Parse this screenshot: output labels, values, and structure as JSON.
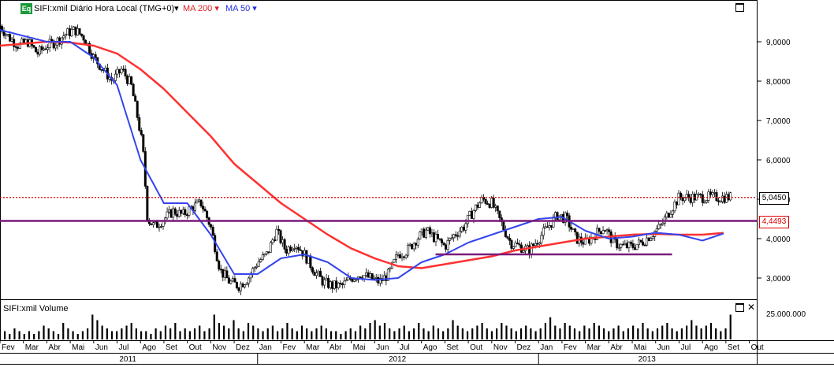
{
  "header": {
    "badge": "Eq",
    "title": "SIFI:xmil Diário Hora Local (TMG+0)▾",
    "ma200": "MA 200 ▾",
    "ma50": "MA 50 ▾"
  },
  "volume_panel": {
    "title": "SIFI:xmil Volume"
  },
  "price_tags": {
    "last": "5,0450",
    "level": "4,4493"
  },
  "colors": {
    "ma200": "#ff3030",
    "ma50": "#3344ee",
    "horizontal_line": "#7a1a7a",
    "last_price_line": "#dd0000",
    "candles": "#000000"
  },
  "chart_data": {
    "type": "line",
    "title": "SIFI:xmil Diário Hora Local (TMG+0)",
    "ylim": [
      2.5,
      9.9
    ],
    "yticks": [
      "9,0000",
      "8,0000",
      "7,0000",
      "6,0000",
      "5,0000",
      "4,0000",
      "3,0000"
    ],
    "yticks_values": [
      9,
      8,
      7,
      6,
      5,
      4,
      3
    ],
    "volume_tick": "25.000.000",
    "months": [
      "Fev",
      "Mar",
      "Abr",
      "Mai",
      "Jun",
      "Jul",
      "Ago",
      "Set",
      "Out",
      "Nov",
      "Dez",
      "Jan",
      "Fev",
      "Mar",
      "Abr",
      "Mai",
      "Jun",
      "Jul",
      "Ago",
      "Set",
      "Out",
      "Nov",
      "Dez",
      "Jan",
      "Fev",
      "Mar",
      "Abr",
      "Mai",
      "Jun",
      "Jul",
      "Ago",
      "Set",
      "Out"
    ],
    "years": [
      "2011",
      "2012",
      "2013"
    ],
    "year_month_index": [
      0,
      11,
      23
    ],
    "price_series": {
      "name": "SIFI:xmil",
      "t": [
        0,
        0.4,
        0.8,
        1.2,
        1.6,
        2.0,
        2.4,
        2.8,
        3.2,
        3.6,
        4.0,
        4.4,
        4.8,
        5.2,
        5.6,
        5.9,
        6.1,
        6.3,
        6.6,
        7.0,
        7.4,
        7.8,
        8.2,
        8.6,
        9.0,
        9.4,
        9.8,
        10.2,
        10.6,
        11.0,
        11.4,
        11.8,
        12.2,
        12.6,
        13.0,
        13.4,
        13.8,
        14.2,
        14.6,
        15.0,
        15.4,
        15.8,
        16.2,
        16.6,
        17.0,
        17.4,
        17.8,
        18.2,
        18.6,
        19.0,
        19.4,
        19.8,
        20.2,
        20.6,
        21.0,
        21.4,
        21.8,
        22.2,
        22.6,
        23.0,
        23.4,
        23.8,
        24.2,
        24.6,
        25.0,
        25.4,
        25.8,
        26.2,
        26.6,
        27.0,
        27.4,
        27.8,
        28.2,
        28.6,
        29.0,
        29.4,
        29.8,
        30.2,
        30.6,
        31.0,
        31.2
      ],
      "close": [
        9.4,
        9.1,
        8.9,
        9.0,
        8.7,
        8.9,
        9.0,
        9.2,
        9.3,
        9.1,
        8.6,
        8.3,
        8.0,
        8.3,
        7.9,
        7.0,
        6.3,
        4.5,
        4.3,
        4.5,
        4.7,
        4.6,
        4.8,
        4.9,
        4.3,
        3.2,
        2.9,
        2.8,
        3.0,
        3.4,
        3.6,
        4.2,
        3.7,
        3.9,
        3.6,
        3.2,
        2.9,
        2.8,
        2.8,
        3.0,
        3.1,
        3.0,
        2.9,
        3.1,
        3.6,
        3.7,
        4.0,
        4.2,
        4.0,
        3.8,
        4.1,
        4.3,
        4.7,
        5.0,
        4.9,
        4.4,
        3.9,
        3.8,
        3.7,
        4.0,
        4.3,
        4.6,
        4.5,
        4.0,
        3.9,
        4.1,
        4.3,
        3.9,
        3.8,
        3.8,
        3.9,
        4.1,
        4.3,
        4.7,
        5.05,
        5.05,
        5.05,
        5.05,
        5.05,
        5.05,
        5.05
      ]
    },
    "ma50_series": {
      "name": "MA 50",
      "t": [
        0,
        1,
        2,
        3,
        4,
        5,
        6,
        7,
        8,
        9,
        10,
        11,
        12,
        13,
        14,
        15,
        16,
        17,
        18,
        19,
        20,
        21,
        22,
        23,
        24,
        25,
        26,
        27,
        28,
        29,
        30,
        31
      ],
      "values": [
        9.3,
        9.15,
        9.0,
        9.0,
        8.6,
        7.9,
        6.0,
        4.9,
        4.9,
        4.1,
        3.1,
        3.1,
        3.5,
        3.6,
        3.4,
        3.0,
        2.95,
        3.0,
        3.4,
        3.6,
        3.9,
        4.1,
        4.3,
        4.5,
        4.55,
        4.2,
        4.0,
        4.05,
        4.15,
        4.1,
        3.95,
        4.15
      ]
    },
    "ma200_series": {
      "name": "MA 200",
      "t": [
        0,
        1,
        2,
        3,
        4,
        5,
        6,
        7,
        8,
        9,
        10,
        11,
        12,
        13,
        14,
        15,
        16,
        17,
        18,
        19,
        20,
        21,
        22,
        23,
        24,
        25,
        26,
        27,
        28,
        29,
        30,
        31
      ],
      "values": [
        8.9,
        8.95,
        9.0,
        8.98,
        8.9,
        8.7,
        8.3,
        7.8,
        7.2,
        6.6,
        5.9,
        5.4,
        4.9,
        4.5,
        4.1,
        3.75,
        3.5,
        3.3,
        3.25,
        3.35,
        3.45,
        3.55,
        3.7,
        3.8,
        3.9,
        4.0,
        4.05,
        4.1,
        4.12,
        4.1,
        4.1,
        4.15
      ]
    },
    "horizontal_levels": [
      4.4493,
      5.045
    ],
    "support_segment": {
      "value": 3.6,
      "t_start": 18.6,
      "t_end": 28.7
    },
    "volume": [
      2,
      3,
      2,
      4,
      3,
      2,
      3,
      2,
      3,
      5,
      4,
      3,
      2,
      6,
      4,
      3,
      2,
      3,
      4,
      9,
      7,
      5,
      4,
      3,
      3,
      4,
      5,
      6,
      4,
      3,
      3,
      2,
      4,
      3,
      5,
      4,
      6,
      3,
      4,
      3,
      4,
      5,
      3,
      4,
      9,
      6,
      5,
      4,
      7,
      4,
      3,
      6,
      5,
      4,
      3,
      4,
      5,
      3,
      4,
      6,
      4,
      3,
      5,
      4,
      3,
      4,
      5,
      4,
      3,
      3,
      2,
      3,
      4,
      3,
      5,
      4,
      6,
      7,
      5,
      6,
      4,
      3,
      4,
      5,
      3,
      4,
      6,
      4,
      3,
      5,
      4,
      3,
      4,
      7,
      5,
      4,
      3,
      4,
      5,
      6,
      4,
      3,
      4,
      6,
      5,
      4,
      3,
      4,
      5,
      4,
      3,
      4,
      6,
      8,
      5,
      4,
      6,
      5,
      4,
      3,
      5,
      4,
      6,
      5,
      4,
      3,
      4,
      5,
      3,
      4,
      5,
      4,
      6,
      4,
      3,
      4,
      5,
      6,
      4,
      3,
      4,
      5,
      7,
      5,
      4,
      5,
      6,
      4,
      3,
      4,
      9
    ]
  }
}
